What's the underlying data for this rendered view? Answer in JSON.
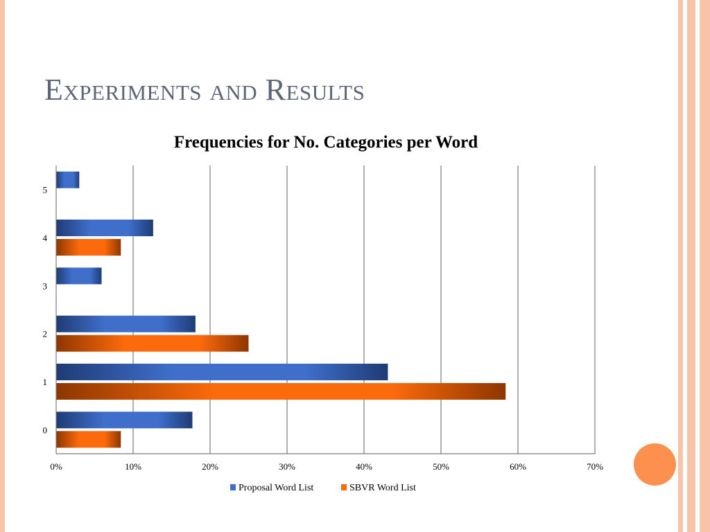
{
  "slide": {
    "title": "Experiments and Results"
  },
  "colors": {
    "proposal": "#3f6fcb",
    "proposal_dark": "#1f3b75",
    "sbvr": "#fb6a0b",
    "sbvr_dark": "#8d3600",
    "accent": "#fd8f4f",
    "stripe": "#f8c3a8"
  },
  "chart_data": {
    "type": "bar",
    "orientation": "horizontal",
    "title": "Frequencies for No. Categories per Word",
    "categories": [
      "0",
      "1",
      "2",
      "3",
      "4",
      "5"
    ],
    "series": [
      {
        "name": "Proposal Word List",
        "values": [
          17.7,
          43.1,
          18.1,
          5.9,
          12.6,
          3.0
        ]
      },
      {
        "name": "SBVR Word List",
        "values": [
          8.4,
          58.4,
          25.0,
          0,
          8.4,
          0
        ]
      }
    ],
    "xlim": [
      0,
      70
    ],
    "xticks": [
      "0%",
      "10%",
      "20%",
      "30%",
      "40%",
      "50%",
      "60%",
      "70%"
    ],
    "xlabel": "",
    "ylabel": "",
    "grid": true,
    "legend": "bottom"
  }
}
